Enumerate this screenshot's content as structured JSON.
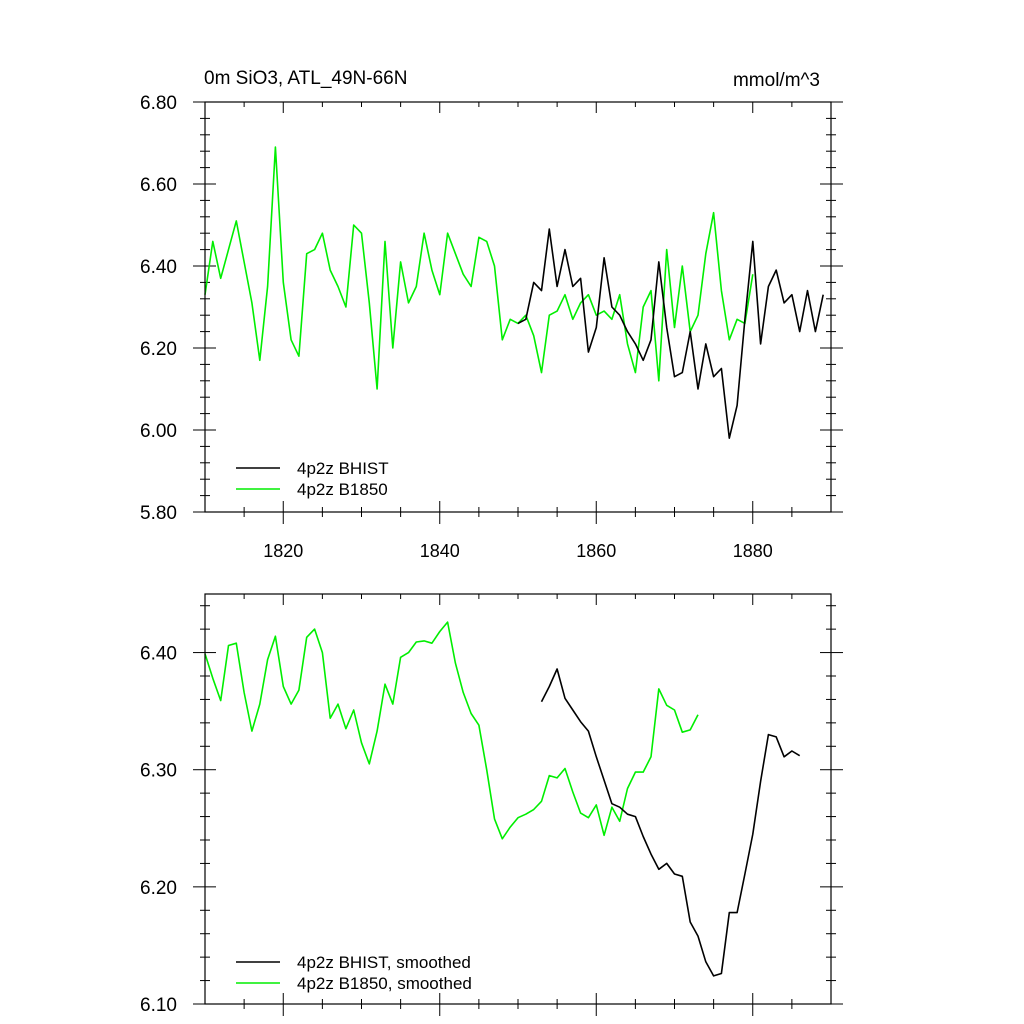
{
  "chart_data": [
    {
      "type": "line",
      "title_left": "0m SiO3, ATL_49N-66N",
      "title_right": "mmol/m^3",
      "xlim": [
        1810,
        1890
      ],
      "ylim": [
        5.8,
        6.8
      ],
      "y_major_ticks": [
        5.8,
        6.0,
        6.2,
        6.4,
        6.6,
        6.8
      ],
      "y_tick_labels": [
        "5.80",
        "6.00",
        "6.20",
        "6.40",
        "6.60",
        "6.80"
      ],
      "x_major_ticks": [
        1820,
        1840,
        1860,
        1880
      ],
      "x_tick_labels": [
        "1820",
        "1840",
        "1860",
        "1880"
      ],
      "legend": [
        "4p2z BHIST",
        "4p2z B1850"
      ],
      "series": [
        {
          "name": "4p2z BHIST",
          "color": "#000000",
          "x_start": 1850,
          "values": [
            6.26,
            6.27,
            6.36,
            6.34,
            6.49,
            6.35,
            6.44,
            6.35,
            6.37,
            6.19,
            6.25,
            6.42,
            6.3,
            6.28,
            6.24,
            6.21,
            6.17,
            6.22,
            6.41,
            6.25,
            6.13,
            6.14,
            6.24,
            6.1,
            6.21,
            6.13,
            6.15,
            5.98,
            6.06,
            6.27,
            6.46,
            6.21,
            6.35,
            6.39,
            6.31,
            6.33,
            6.24,
            6.34,
            6.24,
            6.33
          ]
        },
        {
          "name": "4p2z B1850",
          "color": "#00ee00",
          "x_start": 1810,
          "values": [
            6.33,
            6.46,
            6.37,
            6.44,
            6.51,
            6.41,
            6.31,
            6.17,
            6.35,
            6.69,
            6.36,
            6.22,
            6.18,
            6.43,
            6.44,
            6.48,
            6.39,
            6.35,
            6.3,
            6.5,
            6.48,
            6.31,
            6.1,
            6.46,
            6.2,
            6.41,
            6.31,
            6.35,
            6.48,
            6.39,
            6.33,
            6.48,
            6.43,
            6.38,
            6.35,
            6.47,
            6.46,
            6.4,
            6.22,
            6.27,
            6.26,
            6.28,
            6.23,
            6.14,
            6.28,
            6.29,
            6.33,
            6.27,
            6.31,
            6.33,
            6.28,
            6.29,
            6.27,
            6.33,
            6.21,
            6.14,
            6.3,
            6.34,
            6.12,
            6.44,
            6.25,
            6.4,
            6.24,
            6.28,
            6.43,
            6.53,
            6.34,
            6.22,
            6.27,
            6.26,
            6.38
          ]
        }
      ]
    },
    {
      "type": "line",
      "xlim": [
        1810,
        1890
      ],
      "ylim": [
        6.1,
        6.45
      ],
      "y_major_ticks": [
        6.1,
        6.2,
        6.3,
        6.4
      ],
      "y_tick_labels": [
        "6.10",
        "6.20",
        "6.30",
        "6.40"
      ],
      "x_major_ticks": [
        1820,
        1840,
        1860,
        1880
      ],
      "legend": [
        "4p2z BHIST, smoothed",
        "4p2z B1850, smoothed"
      ],
      "series": [
        {
          "name": "4p2z BHIST, smoothed",
          "color": "#000000",
          "x_start": 1853,
          "values": [
            6.358,
            6.371,
            6.386,
            6.361,
            6.351,
            6.341,
            6.333,
            6.311,
            6.291,
            6.271,
            6.268,
            6.262,
            6.26,
            6.243,
            6.228,
            6.215,
            6.22,
            6.211,
            6.209,
            6.17,
            6.158,
            6.136,
            6.124,
            6.126,
            6.178,
            6.178,
            6.211,
            6.245,
            6.29,
            6.33,
            6.328,
            6.311,
            6.316,
            6.312
          ]
        },
        {
          "name": "4p2z B1850, smoothed",
          "color": "#00ee00",
          "x_start": 1810,
          "values": [
            6.399,
            6.378,
            6.359,
            6.406,
            6.408,
            6.366,
            6.333,
            6.356,
            6.394,
            6.414,
            6.371,
            6.356,
            6.368,
            6.413,
            6.42,
            6.4,
            6.344,
            6.356,
            6.335,
            6.351,
            6.323,
            6.305,
            6.333,
            6.373,
            6.356,
            6.396,
            6.4,
            6.409,
            6.41,
            6.408,
            6.418,
            6.426,
            6.391,
            6.366,
            6.348,
            6.338,
            6.3,
            6.258,
            6.241,
            6.251,
            6.259,
            6.262,
            6.266,
            6.273,
            6.295,
            6.293,
            6.301,
            6.281,
            6.263,
            6.259,
            6.27,
            6.244,
            6.268,
            6.256,
            6.284,
            6.298,
            6.298,
            6.311,
            6.369,
            6.355,
            6.351,
            6.332,
            6.334,
            6.347
          ]
        }
      ]
    }
  ]
}
